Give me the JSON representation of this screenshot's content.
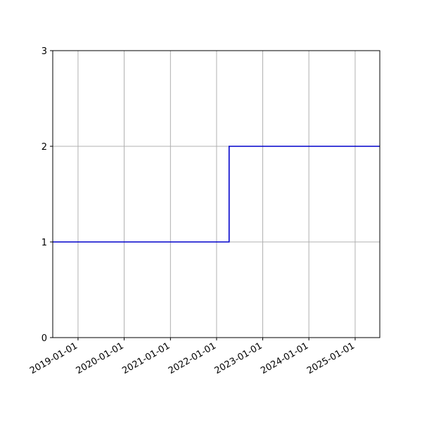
{
  "chart_data": {
    "type": "line",
    "step": "post",
    "title": "",
    "xlabel": "",
    "ylabel": "",
    "x_axis": "date",
    "xlim": [
      "2018-06-15",
      "2025-07-15"
    ],
    "ylim": [
      0,
      3
    ],
    "xticks": [
      "2019-01-01",
      "2020-01-01",
      "2021-01-01",
      "2022-01-01",
      "2023-01-01",
      "2024-01-01",
      "2025-01-01"
    ],
    "yticks": [
      0,
      1,
      2,
      3
    ],
    "grid": true,
    "series": [
      {
        "color": "#0000cc",
        "points": [
          {
            "x": "2018-06-15",
            "y": 1
          },
          {
            "x": "2022-04-10",
            "y": 1
          },
          {
            "x": "2022-04-10",
            "y": 2
          },
          {
            "x": "2025-07-15",
            "y": 2
          }
        ]
      }
    ]
  }
}
